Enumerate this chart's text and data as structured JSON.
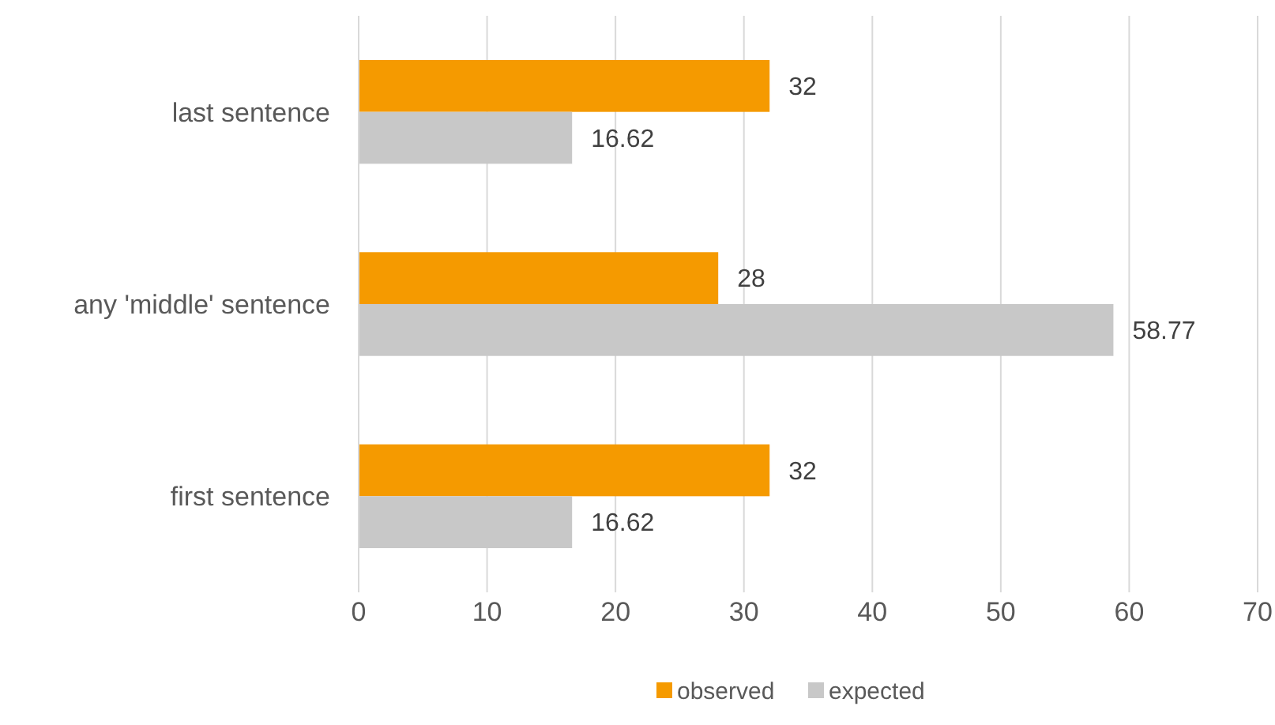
{
  "chart_data": {
    "type": "bar",
    "orientation": "horizontal",
    "categories": [
      "last sentence",
      "any 'middle' sentence",
      "first sentence"
    ],
    "series": [
      {
        "name": "observed",
        "color": "#f59a00",
        "values": [
          32,
          28,
          32
        ]
      },
      {
        "name": "expected",
        "color": "#c8c8c8",
        "values": [
          16.62,
          58.77,
          16.62
        ]
      }
    ],
    "xlim": [
      0,
      70
    ],
    "xticks": [
      0,
      10,
      20,
      30,
      40,
      50,
      60,
      70
    ],
    "grid": "x",
    "legend": "bottom",
    "data_labels": true
  }
}
